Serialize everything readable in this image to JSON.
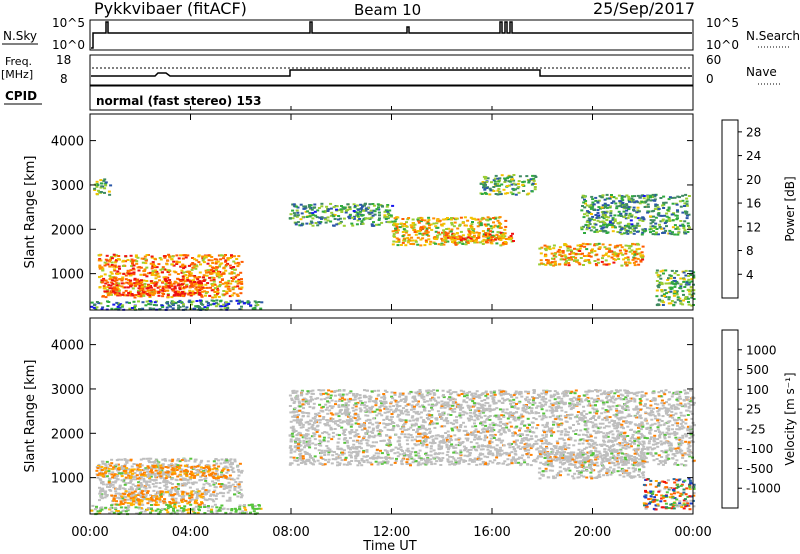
{
  "header": {
    "station": "Pykkvibaer (fitACF)",
    "beam": "Beam 10",
    "date": "25/Sep/2017"
  },
  "strips": {
    "nsky_label": "N.Sky",
    "nsky_ticks": [
      "10^5",
      "10^0"
    ],
    "nsearch_label": "N.Search",
    "freq_label": "Freq.",
    "freq_unit": "[MHz]",
    "freq_ticks": [
      "18",
      "8"
    ],
    "nave_label": "Nave",
    "nave_ticks": [
      "60",
      "0"
    ],
    "cpid_label": "CPID",
    "cpid_text": "normal (fast stereo) 153"
  },
  "chart_data": [
    {
      "type": "heatmap",
      "name": "power",
      "ylabel": "Slant Range [km]",
      "xlabel": "Time UT",
      "x_ticks": [
        "00:00",
        "04:00",
        "08:00",
        "12:00",
        "16:00",
        "20:00",
        "00:00"
      ],
      "xlim_hours": [
        0,
        24
      ],
      "y_ticks": [
        1000,
        2000,
        3000,
        4000
      ],
      "ylim": [
        180,
        4600
      ],
      "colorbar": {
        "label": "Power [dB]",
        "ticks": [
          4,
          8,
          12,
          16,
          20,
          24,
          28
        ],
        "range": [
          0,
          30
        ],
        "colors": [
          "#1515ee",
          "#2a56a8",
          "#3f8a62",
          "#2faa3e",
          "#9acd32",
          "#f2c200",
          "#ff8c00",
          "#ff5a00",
          "#ee1111"
        ]
      },
      "regions": [
        {
          "t0": 0.3,
          "t1": 6.0,
          "r0": 480,
          "r1": 1450,
          "level": 22
        },
        {
          "t0": 0.5,
          "t1": 4.5,
          "r0": 520,
          "r1": 900,
          "level": 27
        },
        {
          "t0": 0.0,
          "t1": 6.8,
          "r0": 200,
          "r1": 420,
          "level": 8
        },
        {
          "t0": 0.1,
          "t1": 0.8,
          "r0": 2800,
          "r1": 3150,
          "level": 12
        },
        {
          "t0": 7.9,
          "t1": 12.0,
          "r0": 2100,
          "r1": 2600,
          "level": 10
        },
        {
          "t0": 12.0,
          "t1": 16.5,
          "r0": 1650,
          "r1": 2300,
          "level": 18
        },
        {
          "t0": 14.0,
          "t1": 16.8,
          "r0": 1700,
          "r1": 1950,
          "level": 22
        },
        {
          "t0": 15.5,
          "t1": 17.7,
          "r0": 2800,
          "r1": 3250,
          "level": 12
        },
        {
          "t0": 17.8,
          "t1": 22.0,
          "r0": 1200,
          "r1": 1700,
          "level": 20
        },
        {
          "t0": 19.5,
          "t1": 23.8,
          "r0": 1900,
          "r1": 2800,
          "level": 10
        },
        {
          "t0": 22.5,
          "t1": 24.0,
          "r0": 300,
          "r1": 1100,
          "level": 12
        }
      ]
    },
    {
      "type": "heatmap",
      "name": "velocity",
      "ylabel": "Slant Range [km]",
      "xlabel": "Time UT",
      "x_ticks": [
        "00:00",
        "04:00",
        "08:00",
        "12:00",
        "16:00",
        "20:00",
        "00:00"
      ],
      "xlim_hours": [
        0,
        24
      ],
      "y_ticks": [
        1000,
        2000,
        3000,
        4000
      ],
      "ylim": [
        180,
        4600
      ],
      "colorbar": {
        "label": "Velocity [m s⁻¹]",
        "ticks": [
          "1000",
          "500",
          "100",
          "25",
          "-25",
          "-100",
          "-500",
          "-1000"
        ],
        "colors": [
          "#1a3bcc",
          "#2b6e9e",
          "#2f8f5a",
          "#55c43a",
          "#bebebe",
          "#ffb000",
          "#ff8000",
          "#ff4a00",
          "#ee1111"
        ]
      },
      "regions": [
        {
          "t0": 0.3,
          "t1": 6.0,
          "r0": 480,
          "r1": 1450,
          "cls": "ground"
        },
        {
          "t0": 0.8,
          "t1": 4.5,
          "r0": 400,
          "r1": 720,
          "cls": "away"
        },
        {
          "t0": 0.2,
          "t1": 5.5,
          "r0": 1000,
          "r1": 1300,
          "cls": "away"
        },
        {
          "t0": 0.0,
          "t1": 6.8,
          "r0": 200,
          "r1": 420,
          "cls": "toward"
        },
        {
          "t0": 7.9,
          "t1": 24.0,
          "r0": 1300,
          "r1": 3000,
          "cls": "ground"
        },
        {
          "t0": 17.8,
          "t1": 22.0,
          "r0": 1000,
          "r1": 1600,
          "cls": "ground"
        },
        {
          "t0": 22.0,
          "t1": 24.0,
          "r0": 300,
          "r1": 1000,
          "cls": "mixed"
        }
      ]
    }
  ]
}
